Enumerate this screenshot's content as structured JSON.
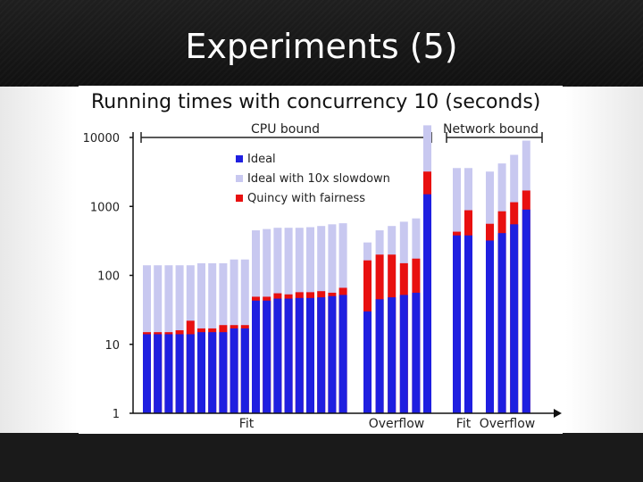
{
  "slide": {
    "title": "Experiments (5)"
  },
  "chart_data": {
    "type": "bar",
    "title": "Running times with concurrency 10 (seconds)",
    "y_scale": "log",
    "ylim": [
      1,
      10000
    ],
    "yticks": [
      "1",
      "10",
      "100",
      "1000",
      "10000"
    ],
    "group_labels": [
      "CPU bound",
      "Network bound"
    ],
    "x_labels": [
      "Fit",
      "Overflow",
      "Fit",
      "Overflow"
    ],
    "legend": [
      {
        "name": "Ideal",
        "color": "#1f1fe0"
      },
      {
        "name": "Ideal with 10x slowdown",
        "color": "#c8c8f0"
      },
      {
        "name": "Quincy with fairness",
        "color": "#e81010"
      }
    ],
    "series": [
      {
        "name": "Ideal",
        "values": [
          14,
          14,
          14,
          14,
          14,
          15,
          15,
          15,
          17,
          17,
          43,
          43,
          46,
          46,
          47,
          47,
          48,
          50,
          52,
          30,
          45,
          48,
          52,
          56,
          1500,
          380,
          380,
          320,
          410,
          550,
          900
        ]
      },
      {
        "name": "Ideal with 10x slowdown",
        "values": [
          140,
          140,
          140,
          140,
          140,
          150,
          150,
          150,
          170,
          170,
          450,
          470,
          490,
          490,
          490,
          500,
          520,
          550,
          570,
          300,
          450,
          520,
          600,
          670,
          15000,
          3600,
          3600,
          3200,
          4200,
          5600,
          9000
        ]
      },
      {
        "name": "Quincy with fairness",
        "values": [
          15,
          15,
          15,
          16,
          22,
          17,
          17,
          19,
          19,
          19,
          49,
          49,
          55,
          53,
          57,
          57,
          59,
          56,
          66,
          165,
          200,
          200,
          150,
          175,
          3200,
          430,
          880,
          560,
          850,
          1150,
          1700
        ]
      }
    ]
  }
}
